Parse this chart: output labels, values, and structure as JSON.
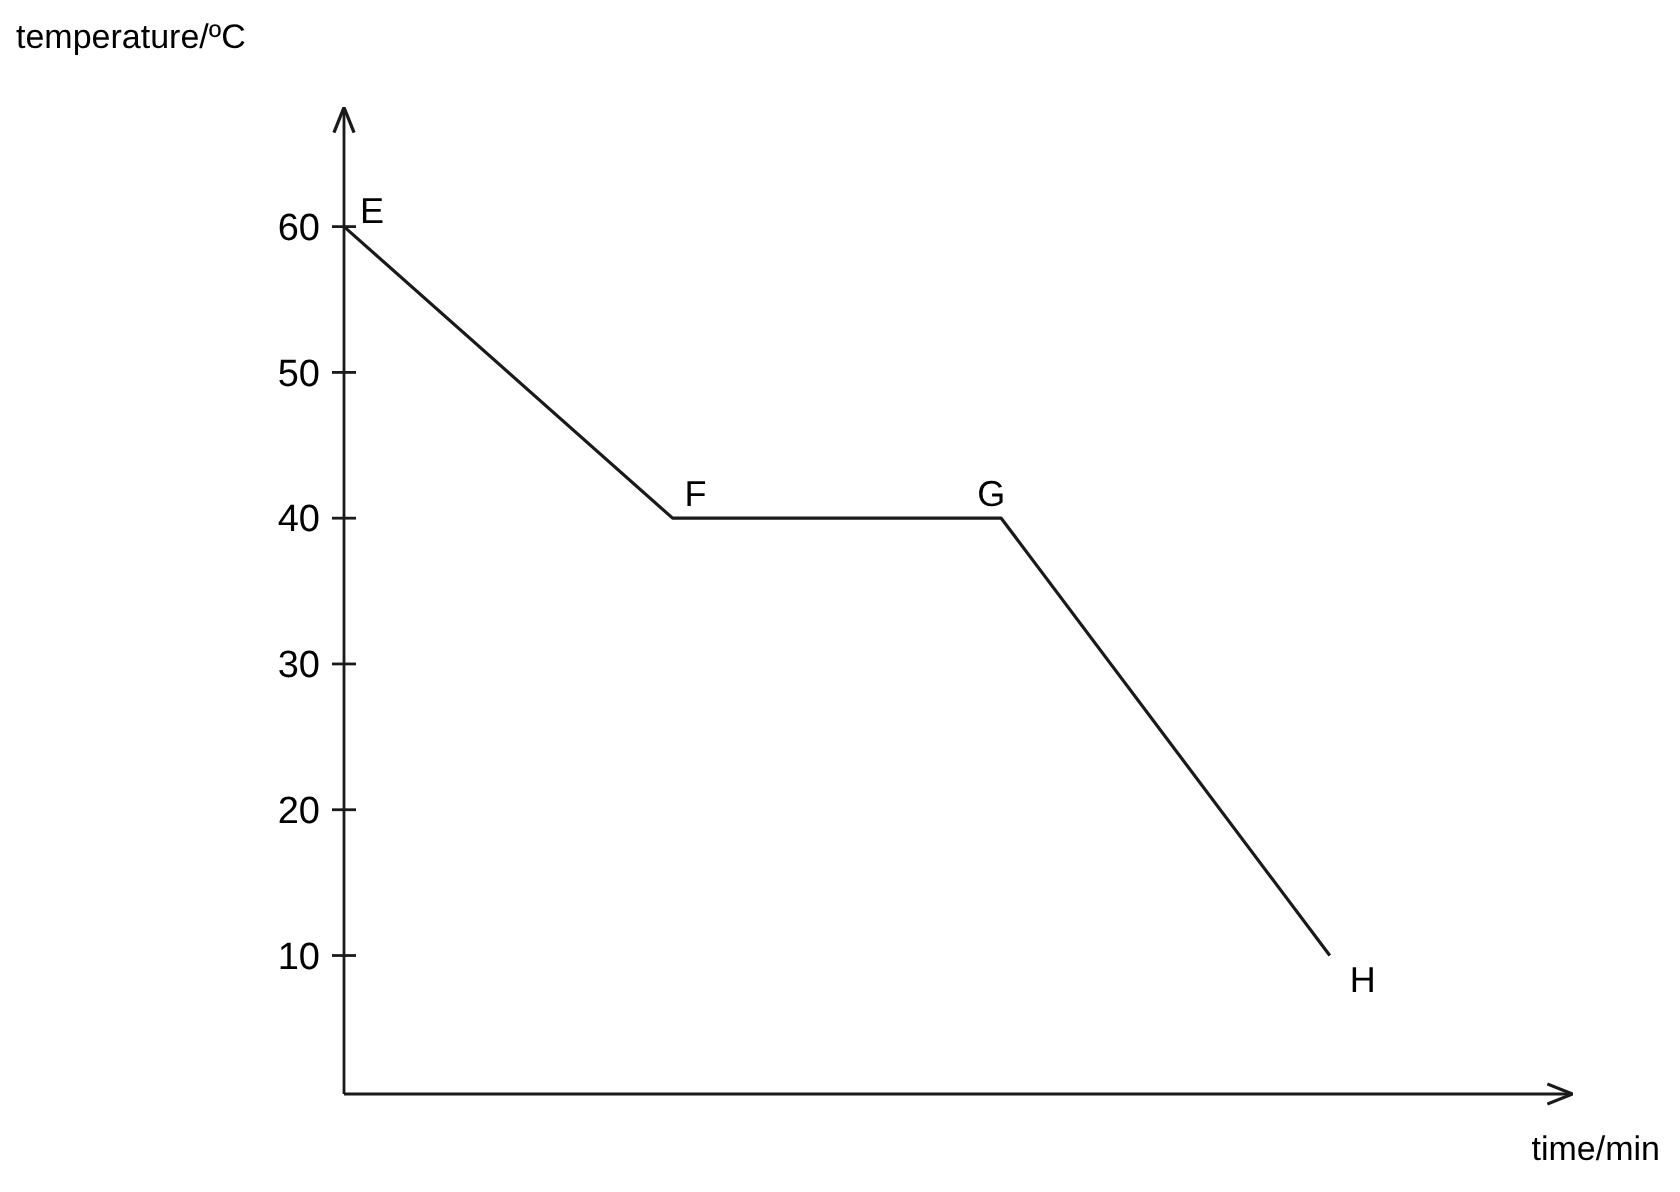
{
  "chart_data": {
    "type": "line",
    "xlabel": "time/min",
    "ylabel": "temperature/ºC",
    "categories": [
      null,
      null,
      null,
      null
    ],
    "series": [
      {
        "color": "#1a1a1a",
        "values": [
          60,
          40,
          40,
          10
        ]
      }
    ],
    "ylim": [
      0.5,
      68
    ],
    "yticks": [
      10,
      20,
      30,
      40,
      50,
      60
    ],
    "tick_labels": "y",
    "grid": false,
    "marker": "none",
    "line_style": "solid",
    "annotations": [
      "E",
      "F",
      "G",
      "H"
    ]
  }
}
